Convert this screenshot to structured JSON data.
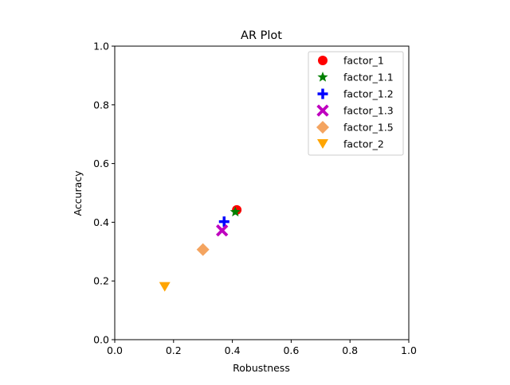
{
  "chart_data": {
    "type": "scatter",
    "title": "AR Plot",
    "xlabel": "Robustness",
    "ylabel": "Accuracy",
    "xlim": [
      0.0,
      1.0
    ],
    "ylim": [
      0.0,
      1.0
    ],
    "xticks": [
      "0.0",
      "0.2",
      "0.4",
      "0.6",
      "0.8",
      "1.0"
    ],
    "yticks": [
      "0.0",
      "0.2",
      "0.4",
      "0.6",
      "0.8",
      "1.0"
    ],
    "grid": false,
    "legend_position": "top-right",
    "series": [
      {
        "name": "factor_1",
        "marker": "circle",
        "color": "#ff0000",
        "x": 0.415,
        "y": 0.442
      },
      {
        "name": "factor_1.1",
        "marker": "star",
        "color": "#008000",
        "x": 0.41,
        "y": 0.435
      },
      {
        "name": "factor_1.2",
        "marker": "plus",
        "color": "#0000ff",
        "x": 0.372,
        "y": 0.402
      },
      {
        "name": "factor_1.3",
        "marker": "x",
        "color": "#bf00bf",
        "x": 0.365,
        "y": 0.372
      },
      {
        "name": "factor_1.5",
        "marker": "diamond",
        "color": "#f4a460",
        "x": 0.3,
        "y": 0.307
      },
      {
        "name": "factor_2",
        "marker": "triangle-down",
        "color": "#ffa500",
        "x": 0.17,
        "y": 0.18
      }
    ]
  }
}
